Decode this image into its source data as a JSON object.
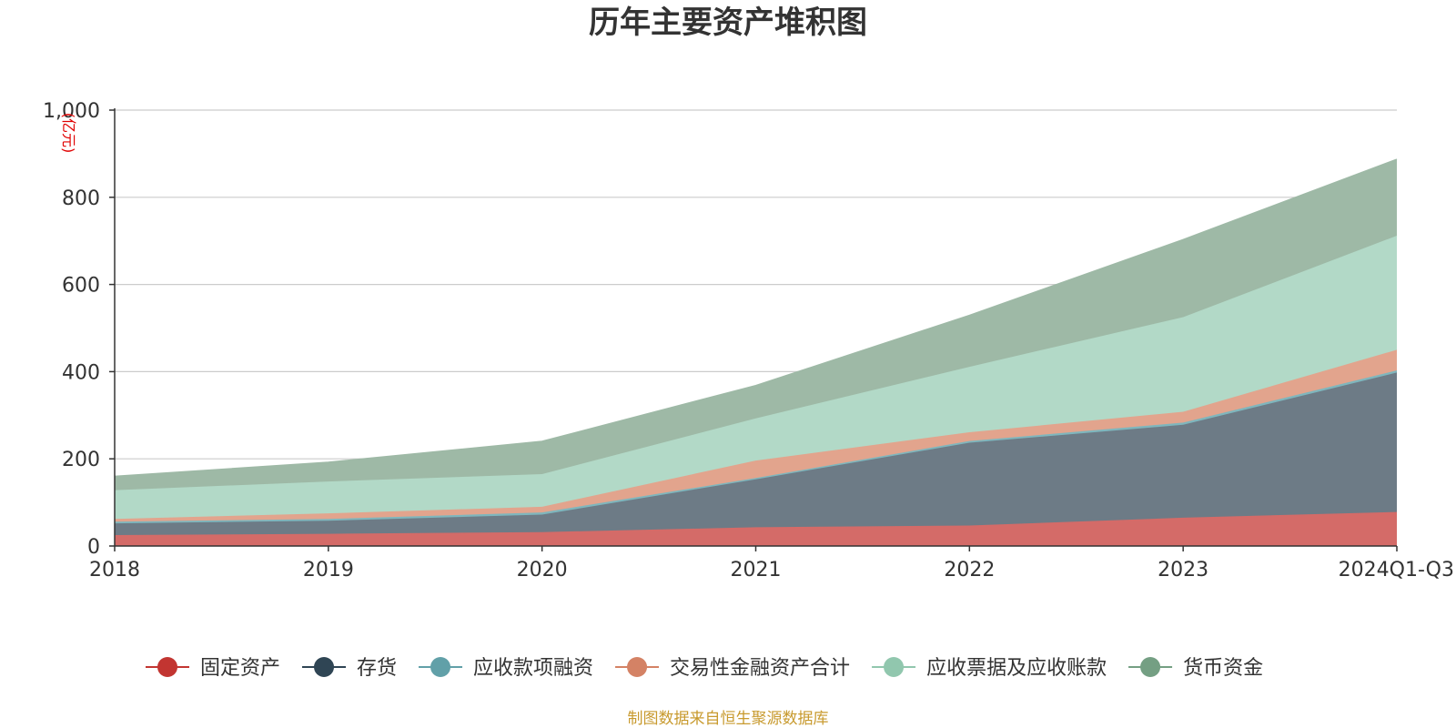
{
  "chart_data": {
    "type": "area",
    "stacked": true,
    "title": "历年主要资产堆积图",
    "unit_label": "(亿元)",
    "source": "制图数据来自恒生聚源数据库",
    "categories": [
      "2018",
      "2019",
      "2020",
      "2021",
      "2022",
      "2023",
      "2024Q1-Q3"
    ],
    "ylim": [
      0,
      1000
    ],
    "yticks": [
      0,
      200,
      400,
      600,
      800,
      1000
    ],
    "ytick_labels": [
      "0",
      "200",
      "400",
      "600",
      "800",
      "1,000"
    ],
    "grid": true,
    "legend_position": "bottom",
    "series": [
      {
        "name": "固定资产",
        "color": "#c23531",
        "area_color": "#d46b68",
        "values": [
          25,
          28,
          32,
          43,
          47,
          65,
          78
        ]
      },
      {
        "name": "存货",
        "color": "#2f4554",
        "area_color": "#6d7b86",
        "values": [
          27,
          30,
          40,
          110,
          190,
          213,
          320
        ]
      },
      {
        "name": "应收款项融资",
        "color": "#61a0a8",
        "area_color": "#7fb6bd",
        "values": [
          4,
          4,
          5,
          3,
          4,
          5,
          5
        ]
      },
      {
        "name": "交易性金融资产合计",
        "color": "#d48265",
        "area_color": "#e2a48d",
        "values": [
          6,
          13,
          13,
          40,
          20,
          25,
          47
        ]
      },
      {
        "name": "应收票据及应收账款",
        "color": "#91c7ae",
        "area_color": "#b2d9c7",
        "values": [
          66,
          73,
          75,
          97,
          150,
          217,
          262
        ]
      },
      {
        "name": "货币资金",
        "color": "#749f83",
        "area_color": "#9eb9a6",
        "values": [
          32,
          44,
          75,
          75,
          118,
          178,
          175
        ]
      }
    ]
  }
}
